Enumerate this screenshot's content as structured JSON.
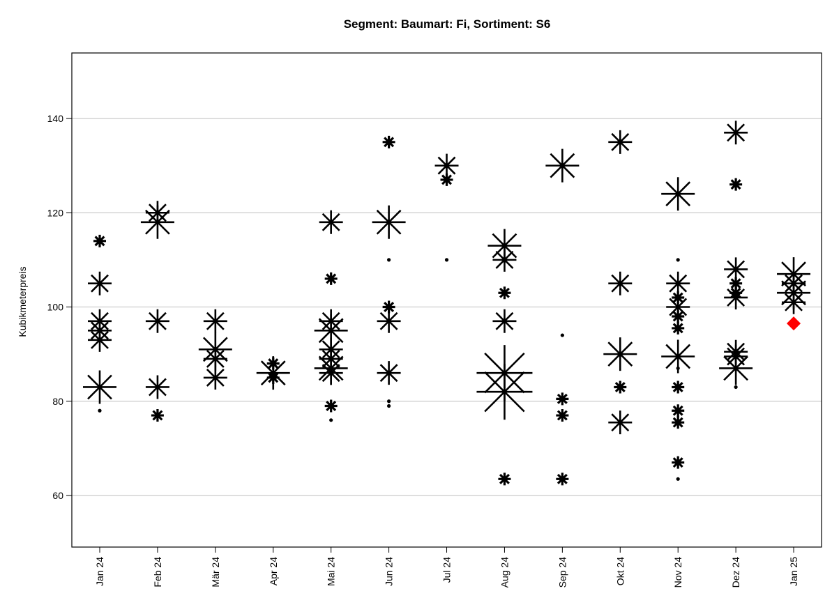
{
  "chart_data": {
    "type": "scatter",
    "title": "Segment: Baumart: Fi, Sortiment: S6",
    "xlabel": "",
    "ylabel": "Kubikmeterpreis",
    "ylim": [
      49,
      155
    ],
    "yticks": [
      60,
      80,
      100,
      120,
      140
    ],
    "grid": "horizontal",
    "categories": [
      "Jan 24",
      "Feb 24",
      "Mär 24",
      "Apr 24",
      "Mai 24",
      "Jun 24",
      "Jul 24",
      "Aug 24",
      "Sep 24",
      "Okt 24",
      "Nov 24",
      "Dez 24",
      "Jan 25"
    ],
    "marker": "star",
    "marker_color": "#000000",
    "points": [
      {
        "cat": "Jan 24",
        "y": 114,
        "size": 2
      },
      {
        "cat": "Jan 24",
        "y": 105,
        "size": 3
      },
      {
        "cat": "Jan 24",
        "y": 97,
        "size": 3
      },
      {
        "cat": "Jan 24",
        "y": 95,
        "size": 3
      },
      {
        "cat": "Jan 24",
        "y": 93,
        "size": 3
      },
      {
        "cat": "Jan 24",
        "y": 83,
        "size": 4
      },
      {
        "cat": "Jan 24",
        "y": 78,
        "size": 1
      },
      {
        "cat": "Feb 24",
        "y": 120,
        "size": 3
      },
      {
        "cat": "Feb 24",
        "y": 118,
        "size": 4
      },
      {
        "cat": "Feb 24",
        "y": 97,
        "size": 3
      },
      {
        "cat": "Feb 24",
        "y": 83,
        "size": 3
      },
      {
        "cat": "Feb 24",
        "y": 77,
        "size": 2
      },
      {
        "cat": "Mär 24",
        "y": 97,
        "size": 3
      },
      {
        "cat": "Mär 24",
        "y": 91,
        "size": 4
      },
      {
        "cat": "Mär 24",
        "y": 89,
        "size": 3
      },
      {
        "cat": "Mär 24",
        "y": 85,
        "size": 3
      },
      {
        "cat": "Apr 24",
        "y": 88,
        "size": 2
      },
      {
        "cat": "Apr 24",
        "y": 86,
        "size": 4
      },
      {
        "cat": "Apr 24",
        "y": 85,
        "size": 2
      },
      {
        "cat": "Mai 24",
        "y": 118,
        "size": 3
      },
      {
        "cat": "Mai 24",
        "y": 106,
        "size": 2
      },
      {
        "cat": "Mai 24",
        "y": 97,
        "size": 3
      },
      {
        "cat": "Mai 24",
        "y": 95,
        "size": 4
      },
      {
        "cat": "Mai 24",
        "y": 91,
        "size": 3
      },
      {
        "cat": "Mai 24",
        "y": 89,
        "size": 3
      },
      {
        "cat": "Mai 24",
        "y": 87,
        "size": 4
      },
      {
        "cat": "Mai 24",
        "y": 86,
        "size": 3
      },
      {
        "cat": "Mai 24",
        "y": 79,
        "size": 2
      },
      {
        "cat": "Mai 24",
        "y": 76,
        "size": 1
      },
      {
        "cat": "Jun 24",
        "y": 135,
        "size": 2
      },
      {
        "cat": "Jun 24",
        "y": 118,
        "size": 4
      },
      {
        "cat": "Jun 24",
        "y": 110,
        "size": 1
      },
      {
        "cat": "Jun 24",
        "y": 100,
        "size": 2
      },
      {
        "cat": "Jun 24",
        "y": 97,
        "size": 3
      },
      {
        "cat": "Jun 24",
        "y": 86,
        "size": 3
      },
      {
        "cat": "Jun 24",
        "y": 80,
        "size": 1
      },
      {
        "cat": "Jun 24",
        "y": 79,
        "size": 1
      },
      {
        "cat": "Jul 24",
        "y": 130,
        "size": 3
      },
      {
        "cat": "Jul 24",
        "y": 127,
        "size": 2
      },
      {
        "cat": "Jul 24",
        "y": 110,
        "size": 1
      },
      {
        "cat": "Aug 24",
        "y": 113,
        "size": 4
      },
      {
        "cat": "Aug 24",
        "y": 110,
        "size": 3
      },
      {
        "cat": "Aug 24",
        "y": 103,
        "size": 2
      },
      {
        "cat": "Aug 24",
        "y": 97,
        "size": 3
      },
      {
        "cat": "Aug 24",
        "y": 86,
        "size": 5
      },
      {
        "cat": "Aug 24",
        "y": 82,
        "size": 5
      },
      {
        "cat": "Aug 24",
        "y": 63.5,
        "size": 2
      },
      {
        "cat": "Sep 24",
        "y": 130,
        "size": 4
      },
      {
        "cat": "Sep 24",
        "y": 94,
        "size": 1
      },
      {
        "cat": "Sep 24",
        "y": 80.5,
        "size": 2
      },
      {
        "cat": "Sep 24",
        "y": 77,
        "size": 2
      },
      {
        "cat": "Sep 24",
        "y": 63.5,
        "size": 2
      },
      {
        "cat": "Okt 24",
        "y": 135,
        "size": 3
      },
      {
        "cat": "Okt 24",
        "y": 105,
        "size": 3
      },
      {
        "cat": "Okt 24",
        "y": 90,
        "size": 4
      },
      {
        "cat": "Okt 24",
        "y": 83,
        "size": 2
      },
      {
        "cat": "Okt 24",
        "y": 75.5,
        "size": 3
      },
      {
        "cat": "Nov 24",
        "y": 124,
        "size": 4
      },
      {
        "cat": "Nov 24",
        "y": 110,
        "size": 1
      },
      {
        "cat": "Nov 24",
        "y": 105,
        "size": 3
      },
      {
        "cat": "Nov 24",
        "y": 102,
        "size": 2
      },
      {
        "cat": "Nov 24",
        "y": 100,
        "size": 3
      },
      {
        "cat": "Nov 24",
        "y": 98,
        "size": 2
      },
      {
        "cat": "Nov 24",
        "y": 95.5,
        "size": 2
      },
      {
        "cat": "Nov 24",
        "y": 89.5,
        "size": 4
      },
      {
        "cat": "Nov 24",
        "y": 87,
        "size": 1
      },
      {
        "cat": "Nov 24",
        "y": 83,
        "size": 2
      },
      {
        "cat": "Nov 24",
        "y": 78,
        "size": 2
      },
      {
        "cat": "Nov 24",
        "y": 75.5,
        "size": 2
      },
      {
        "cat": "Nov 24",
        "y": 67,
        "size": 2
      },
      {
        "cat": "Nov 24",
        "y": 63.5,
        "size": 1
      },
      {
        "cat": "Dez 24",
        "y": 137,
        "size": 3
      },
      {
        "cat": "Dez 24",
        "y": 126,
        "size": 2
      },
      {
        "cat": "Dez 24",
        "y": 108,
        "size": 3
      },
      {
        "cat": "Dez 24",
        "y": 105,
        "size": 2
      },
      {
        "cat": "Dez 24",
        "y": 103,
        "size": 2
      },
      {
        "cat": "Dez 24",
        "y": 102,
        "size": 3
      },
      {
        "cat": "Dez 24",
        "y": 90.5,
        "size": 3
      },
      {
        "cat": "Dez 24",
        "y": 89.5,
        "size": 3
      },
      {
        "cat": "Dez 24",
        "y": 87,
        "size": 4
      },
      {
        "cat": "Dez 24",
        "y": 83,
        "size": 1
      },
      {
        "cat": "Jan 25",
        "y": 107,
        "size": 4
      },
      {
        "cat": "Jan 25",
        "y": 105,
        "size": 3
      },
      {
        "cat": "Jan 25",
        "y": 103,
        "size": 4
      },
      {
        "cat": "Jan 25",
        "y": 101,
        "size": 3
      }
    ],
    "highlight": [
      {
        "cat": "Jan 25",
        "y": 96.5,
        "shape": "diamond",
        "color": "#ff0000"
      }
    ]
  }
}
